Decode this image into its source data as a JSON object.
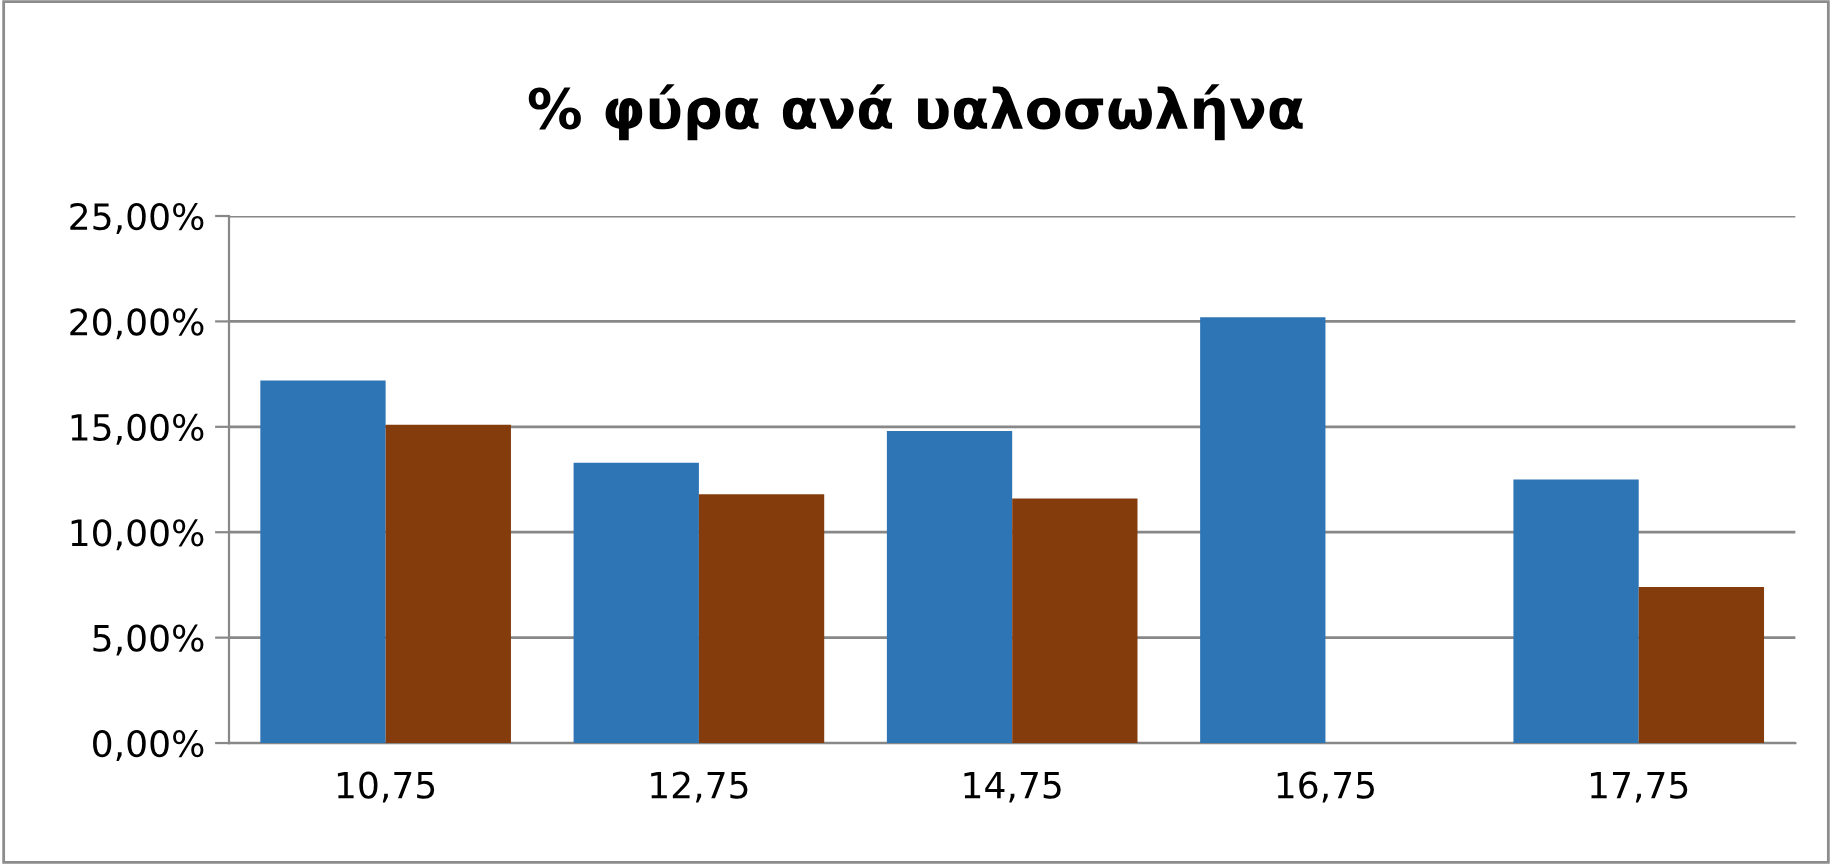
{
  "chart_data": {
    "type": "bar",
    "title": "% φύρα ανά υαλοσωλήνα",
    "categories": [
      "10,75",
      "12,75",
      "14,75",
      "16,75",
      "17,75"
    ],
    "series": [
      {
        "color": "#2e75b6",
        "values": [
          17.2,
          13.3,
          14.8,
          20.2,
          12.5
        ]
      },
      {
        "color": "#843c0c",
        "values": [
          15.1,
          11.8,
          11.6,
          null,
          7.4
        ]
      }
    ],
    "ylim": [
      0,
      25
    ],
    "yticks": [
      {
        "value": 0,
        "label": "0,00%"
      },
      {
        "value": 5,
        "label": "5,00%"
      },
      {
        "value": 10,
        "label": "10,00%"
      },
      {
        "value": 15,
        "label": "15,00%"
      },
      {
        "value": 20,
        "label": "20,00%"
      },
      {
        "value": 25,
        "label": "25,00%"
      }
    ],
    "grid": "y",
    "legend": false
  }
}
